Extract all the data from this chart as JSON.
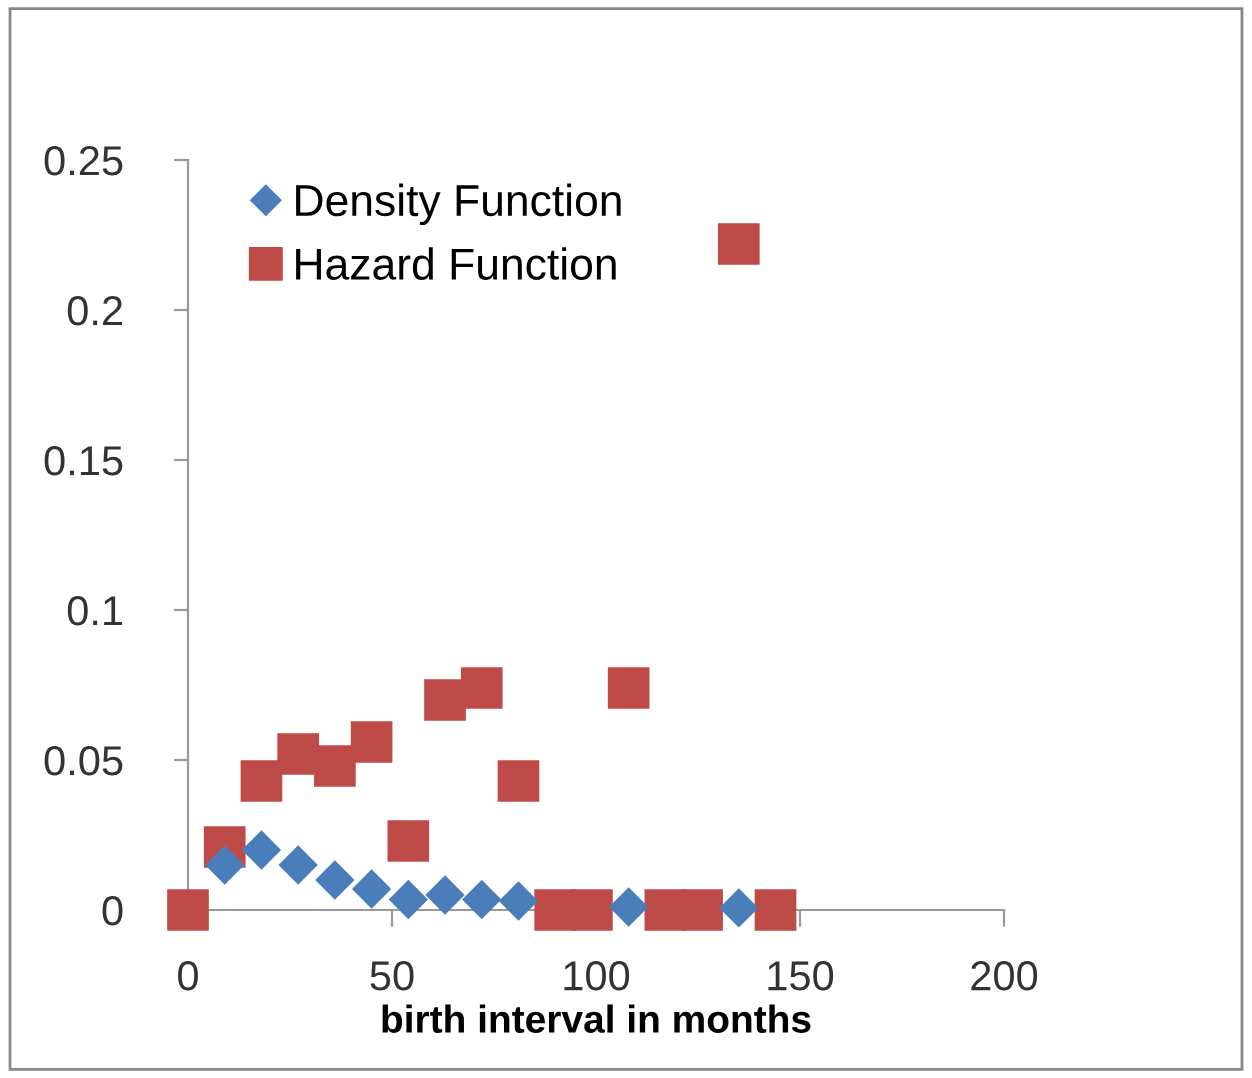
{
  "chart_data": {
    "type": "scatter",
    "xlabel": "birth interval in months",
    "x": [
      0,
      9,
      18,
      27,
      36,
      45,
      54,
      63,
      72,
      81,
      90,
      99,
      108,
      117,
      126,
      135,
      144
    ],
    "series": [
      {
        "name": "Density Function",
        "color": "#4a7ebb",
        "marker": "diamond",
        "values": [
          null,
          0.015,
          0.02,
          0.015,
          0.01,
          0.007,
          0.0035,
          0.005,
          0.0035,
          0.003,
          null,
          null,
          0.001,
          null,
          null,
          0.0007,
          null
        ]
      },
      {
        "name": "Hazard Function",
        "color": "#be4b48",
        "marker": "square",
        "values": [
          0,
          0.021,
          0.043,
          0.052,
          0.048,
          0.056,
          0.023,
          0.07,
          0.074,
          0.043,
          0,
          0,
          0.074,
          0,
          0,
          0.222,
          0
        ]
      }
    ],
    "xlim": [
      0,
      200
    ],
    "xticks": [
      0,
      50,
      100,
      150,
      200
    ],
    "ylim": [
      0,
      0.25
    ],
    "yticks": [
      0,
      0.05,
      0.1,
      0.15,
      0.2,
      0.25
    ],
    "grid": false,
    "legend": "top left"
  }
}
